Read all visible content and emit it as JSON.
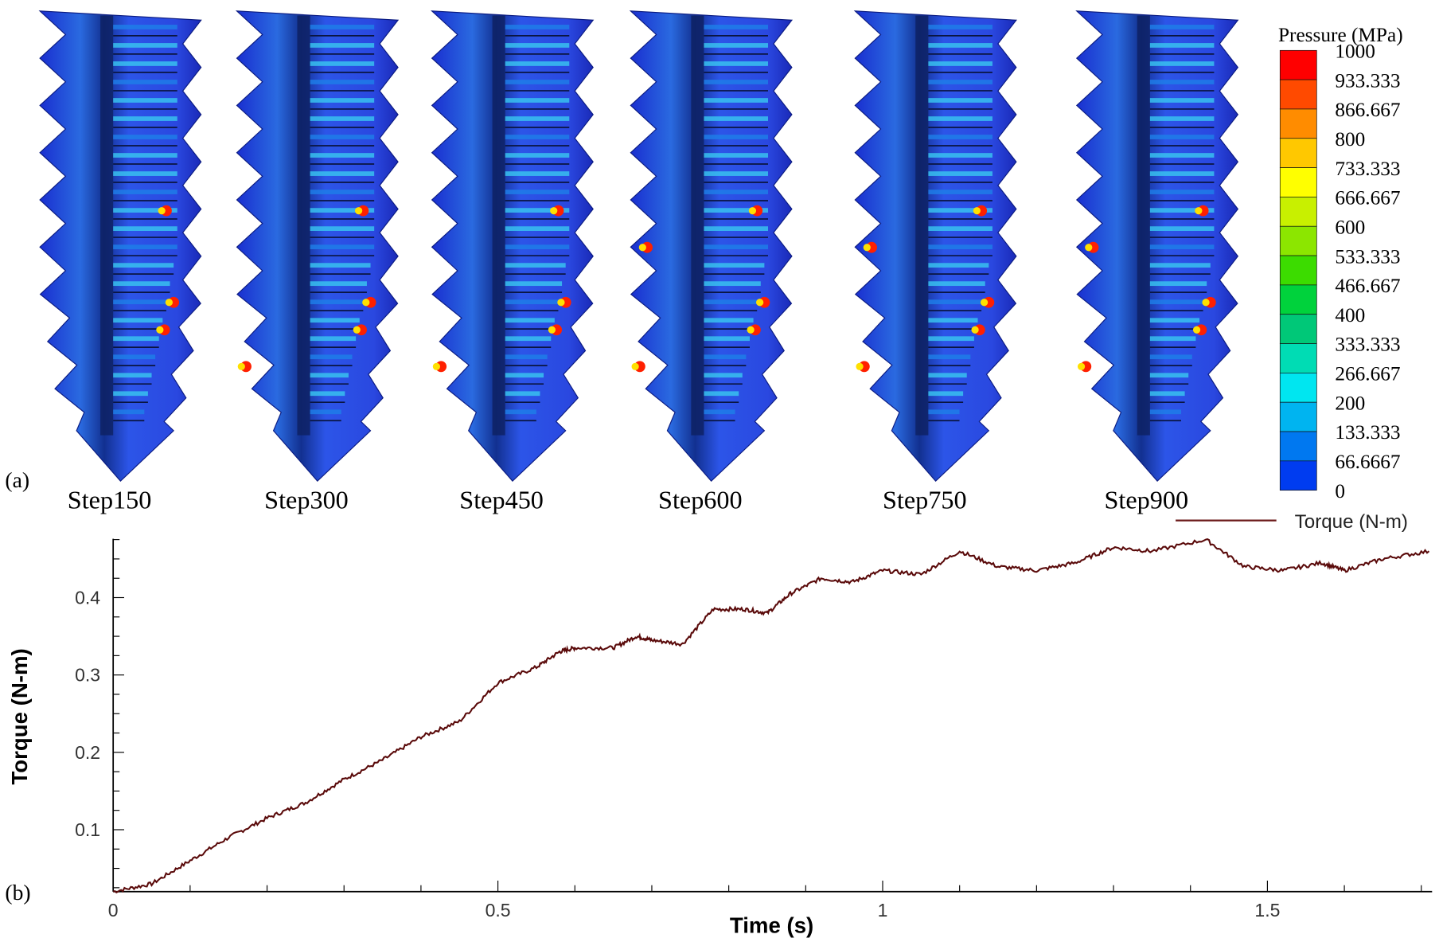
{
  "panel_labels": {
    "a": "(a)",
    "b": "(b)"
  },
  "contour": {
    "title": "Pressure (MPa)",
    "steps": [
      "Step150",
      "Step300",
      "Step450",
      "Step600",
      "Step750",
      "Step900"
    ],
    "colorbar_labels": [
      "1000",
      "933.333",
      "866.667",
      "800",
      "733.333",
      "666.667",
      "600",
      "533.333",
      "466.667",
      "400",
      "333.333",
      "266.667",
      "200",
      "133.333",
      "66.6667",
      "0"
    ],
    "colorbar_colors": [
      "#ff0000",
      "#ff4a00",
      "#ff8c00",
      "#ffc800",
      "#ffff00",
      "#c8f000",
      "#8ce600",
      "#3cdc00",
      "#00d23c",
      "#00c878",
      "#00dcb4",
      "#00e6f0",
      "#00b4f0",
      "#0078f0",
      "#003cf0"
    ],
    "hotspot_intensity": [
      0.35,
      0.45,
      0.6,
      0.75,
      0.8,
      0.8
    ]
  },
  "chart_data": {
    "type": "line",
    "title": "",
    "xlabel": "Time (s)",
    "ylabel": "Torque (N-m)",
    "xlim": [
      0,
      1.714
    ],
    "ylim": [
      0.02,
      0.476
    ],
    "xticks": [
      "0",
      "0.5",
      "1",
      "1.5"
    ],
    "xtick_values": [
      0,
      0.5,
      1,
      1.5
    ],
    "yticks": [
      "0.1",
      "0.2",
      "0.3",
      "0.4"
    ],
    "ytick_values": [
      0.1,
      0.2,
      0.3,
      0.4
    ],
    "grid": false,
    "legend": {
      "position": "top-right",
      "entries": [
        "Torque (N-m)"
      ]
    },
    "series": [
      {
        "name": "Torque (N-m)",
        "color": "#5a0a0a",
        "x": [
          0,
          0.05,
          0.1,
          0.15,
          0.2,
          0.25,
          0.3,
          0.35,
          0.4,
          0.45,
          0.5,
          0.55,
          0.58,
          0.6,
          0.65,
          0.68,
          0.7,
          0.74,
          0.78,
          0.82,
          0.85,
          0.88,
          0.92,
          0.96,
          1.0,
          1.05,
          1.1,
          1.15,
          1.2,
          1.25,
          1.3,
          1.35,
          1.42,
          1.47,
          1.52,
          1.57,
          1.6,
          1.65,
          1.71
        ],
        "y": [
          0.02,
          0.03,
          0.06,
          0.09,
          0.115,
          0.135,
          0.165,
          0.19,
          0.22,
          0.24,
          0.29,
          0.31,
          0.33,
          0.335,
          0.335,
          0.35,
          0.345,
          0.34,
          0.385,
          0.385,
          0.38,
          0.405,
          0.425,
          0.42,
          0.435,
          0.43,
          0.46,
          0.44,
          0.435,
          0.445,
          0.465,
          0.46,
          0.475,
          0.44,
          0.435,
          0.445,
          0.435,
          0.45,
          0.46
        ]
      }
    ]
  }
}
